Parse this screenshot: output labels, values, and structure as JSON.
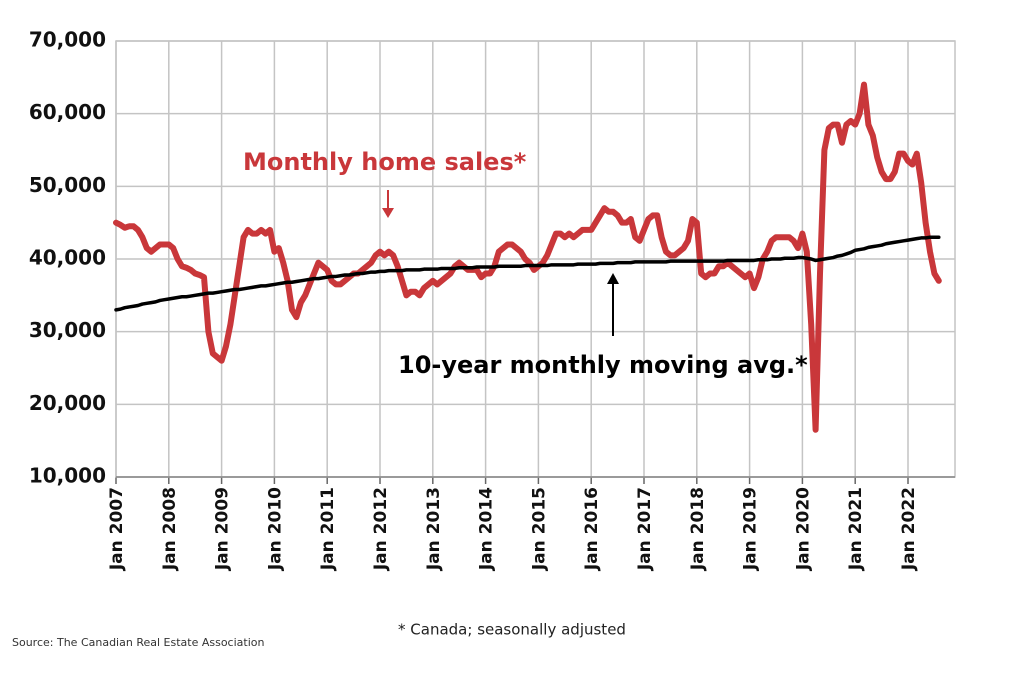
{
  "chart_data": {
    "type": "line",
    "categories": [
      "Jan 2007",
      null,
      null,
      null,
      null,
      null,
      null,
      null,
      null,
      null,
      null,
      null,
      "Jan 2008",
      null,
      null,
      null,
      null,
      null,
      null,
      null,
      null,
      null,
      null,
      null,
      "Jan 2009",
      null,
      null,
      null,
      null,
      null,
      null,
      null,
      null,
      null,
      null,
      null,
      "Jan 2010",
      null,
      null,
      null,
      null,
      null,
      null,
      null,
      null,
      null,
      null,
      null,
      "Jan 2011",
      null,
      null,
      null,
      null,
      null,
      null,
      null,
      null,
      null,
      null,
      null,
      "Jan 2012",
      null,
      null,
      null,
      null,
      null,
      null,
      null,
      null,
      null,
      null,
      null,
      "Jan 2013",
      null,
      null,
      null,
      null,
      null,
      null,
      null,
      null,
      null,
      null,
      null,
      "Jan 2014",
      null,
      null,
      null,
      null,
      null,
      null,
      null,
      null,
      null,
      null,
      null,
      "Jan 2015",
      null,
      null,
      null,
      null,
      null,
      null,
      null,
      null,
      null,
      null,
      null,
      "Jan 2016",
      null,
      null,
      null,
      null,
      null,
      null,
      null,
      null,
      null,
      null,
      null,
      "Jan 2017",
      null,
      null,
      null,
      null,
      null,
      null,
      null,
      null,
      null,
      null,
      null,
      "Jan 2018",
      null,
      null,
      null,
      null,
      null,
      null,
      null,
      null,
      null,
      null,
      null,
      "Jan 2019",
      null,
      null,
      null,
      null,
      null,
      null,
      null,
      null,
      null,
      null,
      null,
      "Jan 2020",
      null,
      null,
      null,
      null,
      null,
      null,
      null,
      null,
      null,
      null,
      null,
      "Jan 2021",
      null,
      null,
      null,
      null,
      null,
      null,
      null,
      null,
      null,
      null,
      null,
      "Jan 2022",
      null,
      null,
      null,
      null,
      null,
      null,
      null
    ],
    "series": [
      {
        "name": "Monthly home sales*",
        "color": "#c9373a",
        "values": [
          45000,
          44700,
          44300,
          44500,
          44500,
          44000,
          43000,
          41500,
          41000,
          41500,
          42000,
          42000,
          42000,
          41500,
          40000,
          39000,
          38800,
          38500,
          38000,
          37800,
          37500,
          30000,
          27000,
          26500,
          26000,
          28000,
          31000,
          35000,
          39000,
          43000,
          44000,
          43500,
          43500,
          44000,
          43500,
          44000,
          41000,
          41500,
          39500,
          37000,
          33000,
          32000,
          34000,
          35000,
          36500,
          38000,
          39500,
          39000,
          38500,
          37000,
          36500,
          36500,
          37000,
          37500,
          38000,
          38000,
          38500,
          39000,
          39500,
          40500,
          41000,
          40500,
          41000,
          40500,
          39000,
          37000,
          35000,
          35500,
          35500,
          35000,
          36000,
          36500,
          37000,
          36500,
          37000,
          37500,
          38000,
          39000,
          39500,
          39000,
          38500,
          38500,
          38500,
          37500,
          38000,
          38000,
          39000,
          41000,
          41500,
          42000,
          42000,
          41500,
          41000,
          40000,
          39500,
          38500,
          39000,
          39500,
          40500,
          42000,
          43500,
          43500,
          43000,
          43500,
          43000,
          43500,
          44000,
          44000,
          44000,
          45000,
          46000,
          47000,
          46500,
          46500,
          46000,
          45000,
          45000,
          45500,
          43000,
          42500,
          44000,
          45500,
          46000,
          46000,
          43000,
          41000,
          40500,
          40500,
          41000,
          41500,
          42500,
          45500,
          45000,
          38000,
          37500,
          38000,
          38000,
          39000,
          39000,
          39500,
          39000,
          38500,
          38000,
          37500,
          38000,
          36000,
          37500,
          40000,
          41000,
          42500,
          43000,
          43000,
          43000,
          43000,
          42500,
          41500,
          43500,
          41000,
          31000,
          16500,
          38000,
          55000,
          58000,
          58500,
          58500,
          56000,
          58500,
          59000,
          58500,
          60000,
          64000,
          58500,
          57000,
          54000,
          52000,
          51000,
          51000,
          52000,
          54500,
          54500,
          53500,
          53000,
          54500,
          50500,
          45000,
          41000,
          38000,
          37000
        ]
      },
      {
        "name": "10-year monthly moving avg.*",
        "color": "#000000",
        "values": [
          33000,
          33100,
          33300,
          33400,
          33500,
          33600,
          33800,
          33900,
          34000,
          34100,
          34300,
          34400,
          34500,
          34600,
          34700,
          34800,
          34800,
          34900,
          35000,
          35100,
          35200,
          35300,
          35300,
          35400,
          35500,
          35600,
          35700,
          35800,
          35800,
          35900,
          36000,
          36100,
          36200,
          36300,
          36300,
          36400,
          36500,
          36600,
          36700,
          36800,
          36800,
          36900,
          37000,
          37100,
          37200,
          37300,
          37300,
          37400,
          37500,
          37600,
          37600,
          37700,
          37800,
          37800,
          37900,
          38000,
          38000,
          38100,
          38200,
          38200,
          38300,
          38300,
          38400,
          38400,
          38400,
          38400,
          38500,
          38500,
          38500,
          38500,
          38600,
          38600,
          38600,
          38600,
          38700,
          38700,
          38700,
          38700,
          38800,
          38800,
          38800,
          38800,
          38900,
          38900,
          38900,
          38900,
          38900,
          39000,
          39000,
          39000,
          39000,
          39000,
          39000,
          39100,
          39100,
          39100,
          39100,
          39100,
          39100,
          39200,
          39200,
          39200,
          39200,
          39200,
          39200,
          39300,
          39300,
          39300,
          39300,
          39300,
          39400,
          39400,
          39400,
          39400,
          39500,
          39500,
          39500,
          39500,
          39600,
          39600,
          39600,
          39600,
          39600,
          39600,
          39600,
          39600,
          39700,
          39700,
          39700,
          39700,
          39700,
          39700,
          39700,
          39700,
          39700,
          39700,
          39700,
          39700,
          39700,
          39800,
          39800,
          39800,
          39800,
          39800,
          39800,
          39800,
          39900,
          39900,
          39900,
          40000,
          40000,
          40000,
          40100,
          40100,
          40100,
          40200,
          40200,
          40100,
          40000,
          39800,
          39900,
          40000,
          40100,
          40200,
          40400,
          40500,
          40700,
          40900,
          41200,
          41300,
          41400,
          41600,
          41700,
          41800,
          41900,
          42100,
          42200,
          42300,
          42400,
          42500,
          42600,
          42700,
          42800,
          42900,
          42900,
          43000,
          43000,
          43000
        ]
      }
    ],
    "ylim": [
      10000,
      70000
    ],
    "yticks": [
      {
        "value": 10000,
        "label": "10,000"
      },
      {
        "value": 20000,
        "label": "20,000"
      },
      {
        "value": 30000,
        "label": "30,000"
      },
      {
        "value": 40000,
        "label": "40,000"
      },
      {
        "value": 50000,
        "label": "50,000"
      },
      {
        "value": 60000,
        "label": "60,000"
      },
      {
        "value": 70000,
        "label": "70,000"
      }
    ],
    "grid": true,
    "footnote": "* Canada; seasonally adjusted",
    "source": "Source: The Canadian Real Estate Association"
  }
}
